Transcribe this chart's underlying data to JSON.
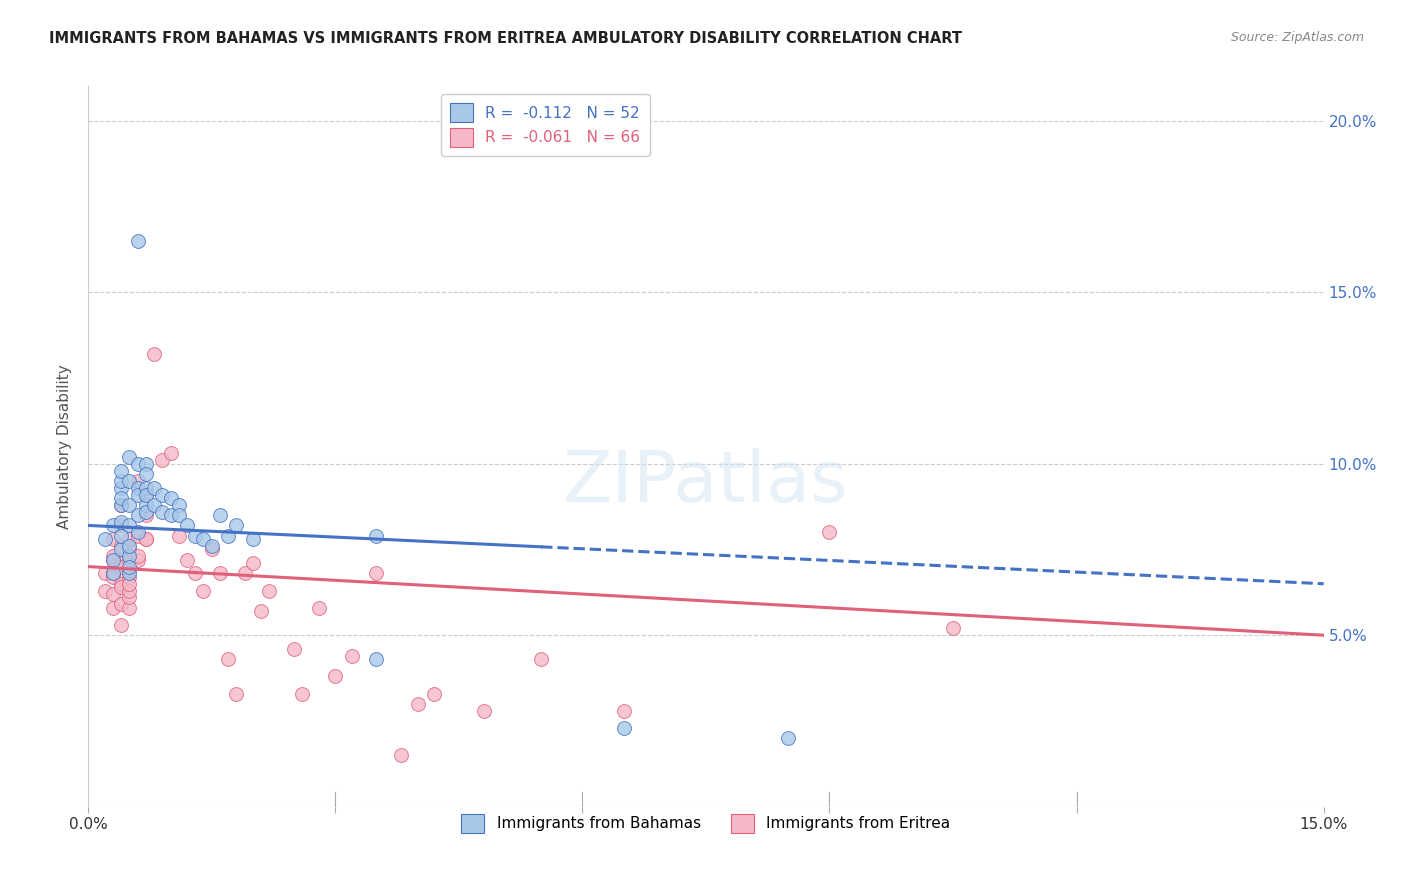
{
  "title": "IMMIGRANTS FROM BAHAMAS VS IMMIGRANTS FROM ERITREA AMBULATORY DISABILITY CORRELATION CHART",
  "source": "Source: ZipAtlas.com",
  "ylabel": "Ambulatory Disability",
  "legend_label1": "Immigrants from Bahamas",
  "legend_label2": "Immigrants from Eritrea",
  "R1": -0.112,
  "N1": 52,
  "R2": -0.061,
  "N2": 66,
  "xlim": [
    0.0,
    0.15
  ],
  "ylim": [
    0.0,
    0.21
  ],
  "yticks": [
    0.0,
    0.05,
    0.1,
    0.15,
    0.2
  ],
  "xticks": [
    0.0,
    0.03,
    0.06,
    0.09,
    0.12,
    0.15
  ],
  "xtick_labels": [
    "0.0%",
    "",
    "",
    "",
    "",
    "15.0%"
  ],
  "ytick_labels_right": [
    "",
    "5.0%",
    "10.0%",
    "15.0%",
    "20.0%"
  ],
  "color_blue": "#A8C8E8",
  "color_pink": "#F4B8C8",
  "color_blue_line": "#4472C4",
  "color_pink_line": "#E0607A",
  "background": "#FFFFFF",
  "blue_line_solid_end": 0.055,
  "pink_line_solid_end": 0.15,
  "blue_scatter": [
    [
      0.002,
      0.078
    ],
    [
      0.003,
      0.082
    ],
    [
      0.003,
      0.072
    ],
    [
      0.003,
      0.068
    ],
    [
      0.004,
      0.093
    ],
    [
      0.004,
      0.088
    ],
    [
      0.004,
      0.075
    ],
    [
      0.004,
      0.095
    ],
    [
      0.004,
      0.098
    ],
    [
      0.004,
      0.09
    ],
    [
      0.004,
      0.083
    ],
    [
      0.004,
      0.079
    ],
    [
      0.005,
      0.073
    ],
    [
      0.005,
      0.068
    ],
    [
      0.005,
      0.102
    ],
    [
      0.005,
      0.095
    ],
    [
      0.005,
      0.088
    ],
    [
      0.005,
      0.082
    ],
    [
      0.005,
      0.076
    ],
    [
      0.005,
      0.07
    ],
    [
      0.006,
      0.1
    ],
    [
      0.006,
      0.093
    ],
    [
      0.006,
      0.091
    ],
    [
      0.006,
      0.085
    ],
    [
      0.006,
      0.165
    ],
    [
      0.006,
      0.08
    ],
    [
      0.007,
      0.1
    ],
    [
      0.007,
      0.093
    ],
    [
      0.007,
      0.088
    ],
    [
      0.007,
      0.097
    ],
    [
      0.007,
      0.091
    ],
    [
      0.007,
      0.086
    ],
    [
      0.008,
      0.093
    ],
    [
      0.008,
      0.088
    ],
    [
      0.009,
      0.091
    ],
    [
      0.009,
      0.086
    ],
    [
      0.01,
      0.09
    ],
    [
      0.01,
      0.085
    ],
    [
      0.011,
      0.088
    ],
    [
      0.011,
      0.085
    ],
    [
      0.012,
      0.082
    ],
    [
      0.013,
      0.079
    ],
    [
      0.014,
      0.078
    ],
    [
      0.015,
      0.076
    ],
    [
      0.016,
      0.085
    ],
    [
      0.017,
      0.079
    ],
    [
      0.018,
      0.082
    ],
    [
      0.02,
      0.078
    ],
    [
      0.035,
      0.043
    ],
    [
      0.035,
      0.079
    ],
    [
      0.065,
      0.023
    ],
    [
      0.085,
      0.02
    ]
  ],
  "pink_scatter": [
    [
      0.002,
      0.068
    ],
    [
      0.002,
      0.063
    ],
    [
      0.003,
      0.068
    ],
    [
      0.003,
      0.078
    ],
    [
      0.003,
      0.072
    ],
    [
      0.003,
      0.068
    ],
    [
      0.003,
      0.062
    ],
    [
      0.003,
      0.058
    ],
    [
      0.003,
      0.073
    ],
    [
      0.003,
      0.067
    ],
    [
      0.004,
      0.071
    ],
    [
      0.004,
      0.065
    ],
    [
      0.004,
      0.059
    ],
    [
      0.004,
      0.053
    ],
    [
      0.004,
      0.088
    ],
    [
      0.004,
      0.082
    ],
    [
      0.004,
      0.076
    ],
    [
      0.004,
      0.07
    ],
    [
      0.004,
      0.064
    ],
    [
      0.005,
      0.058
    ],
    [
      0.005,
      0.073
    ],
    [
      0.005,
      0.067
    ],
    [
      0.005,
      0.061
    ],
    [
      0.005,
      0.075
    ],
    [
      0.005,
      0.069
    ],
    [
      0.005,
      0.063
    ],
    [
      0.005,
      0.078
    ],
    [
      0.005,
      0.072
    ],
    [
      0.005,
      0.065
    ],
    [
      0.006,
      0.079
    ],
    [
      0.006,
      0.072
    ],
    [
      0.006,
      0.095
    ],
    [
      0.006,
      0.073
    ],
    [
      0.007,
      0.078
    ],
    [
      0.007,
      0.091
    ],
    [
      0.007,
      0.078
    ],
    [
      0.007,
      0.085
    ],
    [
      0.008,
      0.132
    ],
    [
      0.009,
      0.101
    ],
    [
      0.01,
      0.103
    ],
    [
      0.011,
      0.079
    ],
    [
      0.012,
      0.072
    ],
    [
      0.013,
      0.068
    ],
    [
      0.014,
      0.063
    ],
    [
      0.015,
      0.075
    ],
    [
      0.016,
      0.068
    ],
    [
      0.017,
      0.043
    ],
    [
      0.018,
      0.033
    ],
    [
      0.019,
      0.068
    ],
    [
      0.02,
      0.071
    ],
    [
      0.021,
      0.057
    ],
    [
      0.022,
      0.063
    ],
    [
      0.025,
      0.046
    ],
    [
      0.026,
      0.033
    ],
    [
      0.028,
      0.058
    ],
    [
      0.03,
      0.038
    ],
    [
      0.032,
      0.044
    ],
    [
      0.035,
      0.068
    ],
    [
      0.038,
      0.015
    ],
    [
      0.04,
      0.03
    ],
    [
      0.042,
      0.033
    ],
    [
      0.048,
      0.028
    ],
    [
      0.055,
      0.043
    ],
    [
      0.065,
      0.028
    ],
    [
      0.09,
      0.08
    ],
    [
      0.105,
      0.052
    ]
  ]
}
